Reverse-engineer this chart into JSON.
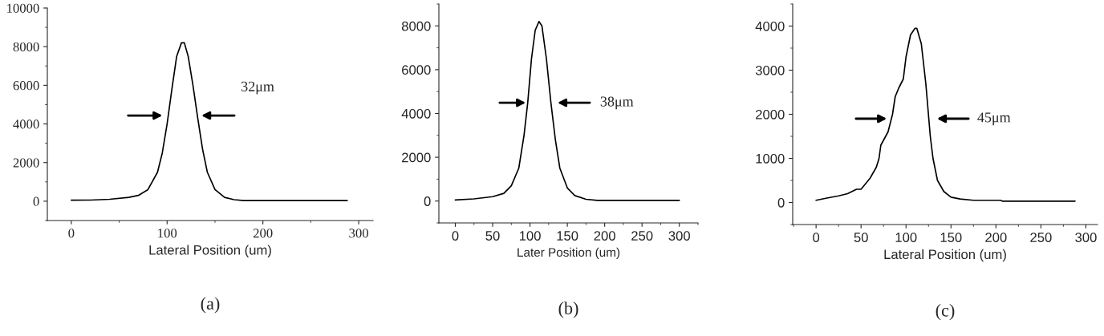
{
  "chart_data": [
    {
      "type": "line",
      "xlabel": "Lateral Position (um)",
      "x": [
        0,
        20,
        40,
        60,
        70,
        80,
        90,
        95,
        100,
        105,
        110,
        115,
        118,
        122,
        127,
        132,
        137,
        142,
        150,
        160,
        170,
        180,
        200,
        288
      ],
      "series": [
        {
          "color": "#000000",
          "values": [
            50,
            60,
            100,
            200,
            300,
            600,
            1500,
            2500,
            4000,
            5800,
            7500,
            8200,
            8200,
            7500,
            6000,
            4300,
            2700,
            1500,
            600,
            200,
            80,
            30,
            30,
            30
          ]
        }
      ],
      "xlim": [
        -25,
        315
      ],
      "ylim": [
        -1000,
        10000
      ],
      "xticks": [
        0,
        100,
        200,
        300
      ],
      "yticks": [
        0,
        2000,
        4000,
        6000,
        8000,
        10000
      ],
      "annotations": [
        "32μm",
        "(a)"
      ]
    },
    {
      "type": "line",
      "xlabel": "Later Position (um)",
      "x": [
        0,
        25,
        50,
        65,
        75,
        85,
        92,
        97,
        102,
        107,
        112,
        116,
        122,
        128,
        134,
        140,
        150,
        160,
        175,
        190,
        300
      ],
      "series": [
        {
          "color": "#000000",
          "values": [
            50,
            100,
            200,
            350,
            700,
            1500,
            3000,
            4500,
            6500,
            7800,
            8200,
            8000,
            6500,
            4500,
            2800,
            1500,
            600,
            250,
            80,
            30,
            30
          ]
        }
      ],
      "xlim": [
        -22,
        325
      ],
      "ylim": [
        -1000,
        9000
      ],
      "xticks": [
        0,
        50,
        100,
        150,
        200,
        250,
        300
      ],
      "yticks": [
        0,
        2000,
        4000,
        6000,
        8000
      ],
      "annotations": [
        "38μm",
        "(b)"
      ]
    },
    {
      "type": "line",
      "xlabel": "Lateral Position (um)",
      "x": [
        0,
        12,
        25,
        35,
        45,
        50,
        60,
        67,
        70,
        72,
        80,
        85,
        88,
        92,
        97,
        100,
        105,
        110,
        112,
        117,
        122,
        127,
        130,
        135,
        142,
        150,
        160,
        175,
        205,
        207,
        288
      ],
      "series": [
        {
          "color": "#000000",
          "values": [
            50,
            100,
            150,
            200,
            300,
            300,
            550,
            800,
            1000,
            1300,
            1600,
            2000,
            2400,
            2600,
            2800,
            3300,
            3800,
            3950,
            3950,
            3600,
            2700,
            1500,
            1000,
            500,
            250,
            120,
            80,
            50,
            50,
            30,
            30
          ]
        }
      ],
      "xlim": [
        -26,
        313
      ],
      "ylim": [
        -500,
        4500
      ],
      "xticks": [
        0,
        50,
        100,
        150,
        200,
        250,
        300
      ],
      "yticks": [
        0,
        1000,
        2000,
        3000,
        4000
      ],
      "annotations": [
        "45μm",
        "(c)"
      ]
    }
  ]
}
